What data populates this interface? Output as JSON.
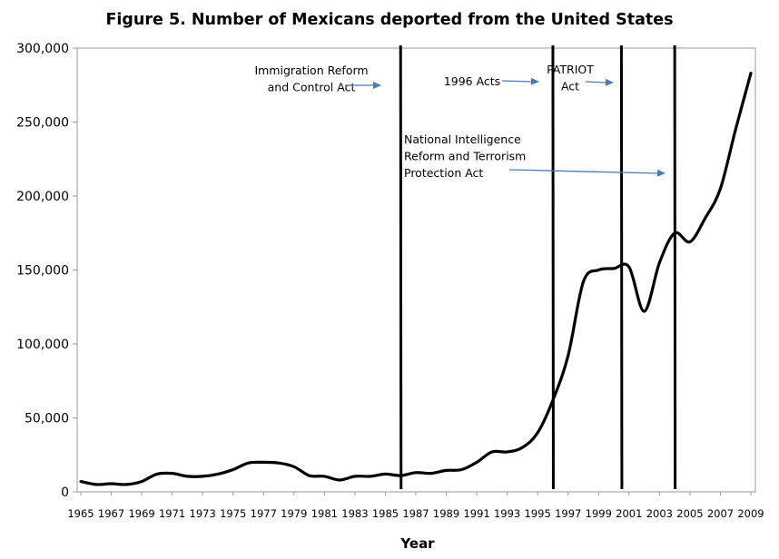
{
  "chart_data": {
    "type": "line",
    "title": "Figure 5.  Number of Mexicans deported from the United States",
    "xlabel": "Year",
    "ylabel": "",
    "xlim": [
      1965,
      2009
    ],
    "ylim": [
      0,
      300000
    ],
    "y_ticks": [
      "0",
      "50,000",
      "100,000",
      "150,000",
      "200,000",
      "250,000",
      "300,000"
    ],
    "x_ticks": [
      "1965",
      "1967",
      "1969",
      "1971",
      "1973",
      "1975",
      "1977",
      "1979",
      "1981",
      "1983",
      "1985",
      "1987",
      "1989",
      "1991",
      "1993",
      "1995",
      "1997",
      "1999",
      "2001",
      "2003",
      "2005",
      "2007",
      "2009"
    ],
    "grid": false,
    "legend": "none",
    "series": [
      {
        "x": [
          1965,
          1966,
          1967,
          1968,
          1969,
          1970,
          1971,
          1972,
          1973,
          1974,
          1975,
          1976,
          1977,
          1978,
          1979,
          1980,
          1981,
          1982,
          1983,
          1984,
          1985,
          1986,
          1987,
          1988,
          1989,
          1990,
          1991,
          1992,
          1993,
          1994,
          1995,
          1996,
          1997,
          1998,
          1999,
          2000,
          2001,
          2002,
          2003,
          2004,
          2005,
          2006,
          2007,
          2008,
          2009
        ],
        "values": [
          7000,
          5000,
          5500,
          5000,
          7000,
          12000,
          12500,
          10500,
          10500,
          12000,
          15000,
          19500,
          20000,
          19500,
          17000,
          11000,
          10500,
          8000,
          10500,
          10500,
          12000,
          11000,
          13000,
          12500,
          14500,
          15000,
          20000,
          27000,
          27000,
          30000,
          40000,
          62000,
          92000,
          142000,
          150000,
          151000,
          152000,
          122000,
          155000,
          175000,
          169000,
          185000,
          205000,
          245000,
          283000
        ],
        "color": "#000000"
      }
    ],
    "annotations": [
      {
        "lines": [
          "Immigration Reform",
          "and Control Act"
        ],
        "x": 1986,
        "arrow_color": "#4a7ab5"
      },
      {
        "lines": [
          "1996 Acts"
        ],
        "x": 1996,
        "arrow_color": "#4a7ab5"
      },
      {
        "lines": [
          "PATRIOT",
          "Act"
        ],
        "x": 2000.5,
        "arrow_color": "#4a7ab5"
      },
      {
        "lines": [
          "National Intelligence",
          "Reform and Terrorism",
          "Protection Act"
        ],
        "x": 2004,
        "arrow_color": "#4a7ab5"
      }
    ]
  }
}
